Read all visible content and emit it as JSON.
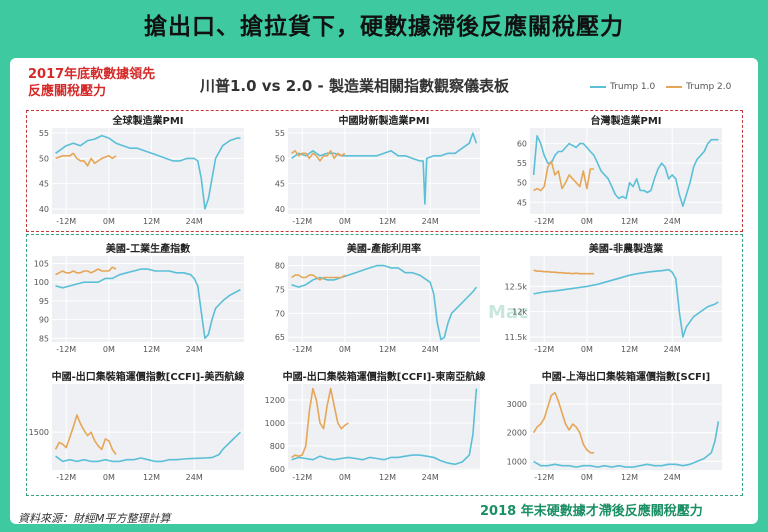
{
  "headline": "搶出口、搶拉貨下，硬數據滯後反應關稅壓力",
  "note_top_left_1": "2017年底軟數據領先",
  "note_top_left_2": "反應關稅壓力",
  "note_bottom_right": "2018 年末硬數據才滯後反應關稅壓力",
  "source": "資料來源：財經M平方整理計算",
  "chart_title": "川普1.0 vs 2.0 - 製造業相關指數觀察儀表板",
  "watermark": "MacroMicro",
  "legend": [
    {
      "name": "Trump 1.0",
      "color": "#5bbfd8"
    },
    {
      "name": "Trump 2.0",
      "color": "#e6a657"
    }
  ],
  "x_ticks": [
    "-12M",
    "0M",
    "12M",
    "24M"
  ],
  "chart_data": [
    {
      "type": "line",
      "title": "全球製造業PMI",
      "ylim": [
        39,
        56
      ],
      "yticks": [
        40,
        45,
        50,
        55
      ],
      "ytick_labels": [
        "40",
        "45",
        "50",
        "55"
      ],
      "series": [
        {
          "name": "Trump 1.0",
          "x": [
            -15,
            -12,
            -10,
            -8,
            -6,
            -4,
            -2,
            0,
            2,
            4,
            6,
            8,
            10,
            12,
            14,
            16,
            18,
            20,
            22,
            24,
            25,
            26,
            27,
            28,
            30,
            32,
            34,
            36,
            37
          ],
          "y": [
            51,
            52.5,
            53,
            52.5,
            53.5,
            53.8,
            54.5,
            54,
            53,
            52.5,
            52,
            52,
            51.5,
            51,
            50.5,
            50,
            49.5,
            49.5,
            50,
            50,
            49.5,
            46,
            40,
            42,
            50,
            52.5,
            53.5,
            54,
            54
          ]
        },
        {
          "name": "Trump 2.0",
          "x": [
            -15,
            -13,
            -11,
            -10,
            -9,
            -8,
            -7,
            -6,
            -5,
            -4,
            -2,
            0,
            1,
            2
          ],
          "y": [
            50,
            50.5,
            50.5,
            51,
            50,
            49.5,
            49.5,
            48.5,
            50,
            49,
            50,
            50.5,
            50,
            50.5
          ]
        }
      ]
    },
    {
      "type": "line",
      "title": "中國財新製造業PMI",
      "ylim": [
        39,
        56
      ],
      "yticks": [
        40,
        45,
        50,
        55
      ],
      "ytick_labels": [
        "40",
        "45",
        "50",
        "55"
      ],
      "series": [
        {
          "name": "Trump 1.0",
          "x": [
            -15,
            -13,
            -11,
            -9,
            -7,
            -5,
            -3,
            -1,
            1,
            3,
            5,
            7,
            9,
            11,
            13,
            15,
            17,
            19,
            21,
            22,
            22.5,
            23,
            25,
            27,
            29,
            31,
            33,
            35,
            36,
            37
          ],
          "y": [
            50,
            51,
            50.5,
            51.5,
            50.5,
            51,
            51,
            50.5,
            50.5,
            50.5,
            50.5,
            50.5,
            50.5,
            51,
            51.5,
            50.5,
            50.5,
            50,
            49.5,
            49.5,
            41,
            50,
            50.5,
            50.5,
            51,
            51,
            52,
            53,
            55,
            53
          ]
        },
        {
          "name": "Trump 2.0",
          "x": [
            -15,
            -14,
            -13,
            -12,
            -11,
            -10,
            -9,
            -8,
            -7,
            -6,
            -5,
            -4,
            -3,
            -2,
            -1,
            0
          ],
          "y": [
            51,
            51.5,
            50.5,
            51,
            51,
            50,
            51,
            50.5,
            49.5,
            50.5,
            50.5,
            51.5,
            50,
            51,
            50.5,
            51
          ]
        }
      ]
    },
    {
      "type": "line",
      "title": "台灣製造業PMI",
      "ylim": [
        42,
        64
      ],
      "yticks": [
        45,
        50,
        55,
        60
      ],
      "ytick_labels": [
        "45",
        "50",
        "55",
        "60"
      ],
      "series": [
        {
          "name": "Trump 1.0",
          "x": [
            -15,
            -14,
            -13,
            -12,
            -11,
            -10,
            -9,
            -8,
            -7,
            -6,
            -5,
            -4,
            -3,
            -2,
            -1,
            0,
            1,
            2,
            3,
            4,
            5,
            6,
            7,
            8,
            9,
            10,
            11,
            12,
            13,
            14,
            15,
            16,
            17,
            18,
            19,
            20,
            21,
            22,
            23,
            24,
            25,
            26,
            27,
            28,
            29,
            30,
            31,
            32,
            33,
            34,
            35,
            36,
            37
          ],
          "y": [
            52,
            62,
            60,
            57,
            55,
            55,
            57,
            58,
            58,
            59,
            60,
            59.5,
            59,
            60,
            60,
            59,
            58,
            57,
            55,
            53,
            52,
            51,
            49,
            47,
            46,
            46.5,
            46,
            50,
            49,
            51,
            48,
            48,
            47.5,
            48,
            51,
            53.5,
            55,
            54,
            51,
            52,
            51,
            47,
            44,
            47,
            50,
            54,
            56,
            57,
            58,
            60,
            61,
            61,
            61
          ]
        },
        {
          "name": "Trump 2.0",
          "x": [
            -15,
            -14,
            -13,
            -12,
            -11,
            -10,
            -9,
            -8,
            -7,
            -6,
            -5,
            -4,
            -3,
            -2,
            -1,
            0,
            1,
            2
          ],
          "y": [
            48,
            48.5,
            48,
            49,
            54,
            55.5,
            52,
            53,
            48.5,
            50,
            52,
            51,
            50,
            49,
            53,
            48.5,
            53.5,
            53.5
          ]
        }
      ]
    },
    {
      "type": "line",
      "title": "美國-工業生產指數",
      "ylim": [
        84,
        107
      ],
      "yticks": [
        85,
        90,
        95,
        100,
        105
      ],
      "ytick_labels": [
        "85",
        "90",
        "95",
        "100",
        "105"
      ],
      "series": [
        {
          "name": "Trump 1.0",
          "x": [
            -15,
            -13,
            -11,
            -9,
            -7,
            -5,
            -3,
            -1,
            1,
            3,
            5,
            7,
            9,
            11,
            13,
            15,
            17,
            19,
            21,
            23,
            24,
            25,
            26,
            27,
            28,
            29,
            30,
            32,
            34,
            36,
            37
          ],
          "y": [
            99,
            98.5,
            99,
            99.5,
            100,
            100,
            100,
            101,
            101,
            102,
            102.5,
            103,
            103.5,
            103.5,
            103,
            103,
            103,
            102.5,
            102.5,
            102,
            101,
            99,
            92,
            85,
            86,
            90,
            93,
            95,
            96.5,
            97.5,
            98
          ]
        },
        {
          "name": "Trump 2.0",
          "x": [
            -15,
            -14,
            -13,
            -12,
            -11,
            -10,
            -9,
            -8,
            -7,
            -6,
            -5,
            -4,
            -3,
            -2,
            -1,
            0,
            1,
            2
          ],
          "y": [
            102,
            102.5,
            103,
            102.5,
            102.5,
            103,
            102.5,
            102.5,
            103,
            103,
            102.5,
            103,
            103.5,
            103,
            103,
            103,
            104,
            103.5
          ]
        }
      ]
    },
    {
      "type": "line",
      "title": "美國-產能利用率",
      "ylim": [
        64,
        82
      ],
      "yticks": [
        65,
        70,
        75,
        80
      ],
      "ytick_labels": [
        "65",
        "70",
        "75",
        "80"
      ],
      "series": [
        {
          "name": "Trump 1.0",
          "x": [
            -15,
            -13,
            -11,
            -9,
            -7,
            -5,
            -3,
            -1,
            1,
            3,
            5,
            7,
            9,
            11,
            13,
            15,
            17,
            19,
            21,
            23,
            24,
            25,
            26,
            27,
            28,
            29,
            30,
            32,
            34,
            36,
            37
          ],
          "y": [
            76,
            75.5,
            76,
            77,
            77.5,
            77,
            77,
            77.5,
            78,
            78.5,
            79,
            79.5,
            80,
            80,
            79.5,
            79.5,
            78.5,
            78.5,
            78,
            77,
            76.5,
            74,
            68,
            64.5,
            65,
            68,
            70,
            71.5,
            73,
            74.5,
            75.5
          ]
        },
        {
          "name": "Trump 2.0",
          "x": [
            -15,
            -14,
            -13,
            -12,
            -11,
            -10,
            -9,
            -8,
            -7,
            -6,
            -5,
            -4,
            -3,
            -2,
            -1,
            0
          ],
          "y": [
            77.5,
            78,
            78,
            77.5,
            77.5,
            78,
            78,
            77.5,
            77,
            77.5,
            77.5,
            77.5,
            77.5,
            77.5,
            77.5,
            78
          ]
        }
      ]
    },
    {
      "type": "line",
      "title": "美國-非農製造業",
      "ylim": [
        11400,
        13100
      ],
      "yticks": [
        11500,
        12000,
        12500
      ],
      "ytick_labels": [
        "11.5k",
        "12k",
        "12.5k"
      ],
      "series": [
        {
          "name": "Trump 1.0",
          "x": [
            -15,
            -12,
            -9,
            -6,
            -3,
            0,
            3,
            6,
            9,
            12,
            15,
            18,
            21,
            23,
            24,
            25,
            26,
            27,
            28,
            30,
            32,
            34,
            36,
            37
          ],
          "y": [
            12350,
            12390,
            12410,
            12440,
            12470,
            12500,
            12540,
            12600,
            12660,
            12720,
            12760,
            12790,
            12810,
            12830,
            12780,
            12650,
            12000,
            11500,
            11700,
            11900,
            12000,
            12100,
            12150,
            12190
          ]
        },
        {
          "name": "Trump 2.0",
          "x": [
            -15,
            -14,
            -13,
            -12,
            -11,
            -10,
            -9,
            -8,
            -7,
            -6,
            -5,
            -4,
            -3,
            -2,
            -1,
            0,
            1,
            2
          ],
          "y": [
            12820,
            12800,
            12800,
            12790,
            12790,
            12780,
            12780,
            12770,
            12770,
            12760,
            12760,
            12750,
            12760,
            12750,
            12750,
            12750,
            12750,
            12750
          ]
        }
      ]
    },
    {
      "type": "line",
      "title": "中國-出口集裝箱運價指數[CCFI]-美西航線",
      "ylim": [
        400,
        2900
      ],
      "yticks": [
        1500
      ],
      "ytick_labels": [
        "1500"
      ],
      "series": [
        {
          "name": "Trump 1.0",
          "x": [
            -15,
            -13,
            -11,
            -9,
            -7,
            -5,
            -3,
            -1,
            1,
            3,
            5,
            7,
            9,
            11,
            13,
            15,
            17,
            19,
            21,
            23,
            25,
            27,
            29,
            31,
            32,
            33,
            34,
            35,
            36,
            37
          ],
          "y": [
            800,
            650,
            700,
            650,
            700,
            650,
            650,
            700,
            650,
            650,
            700,
            700,
            750,
            700,
            650,
            650,
            700,
            700,
            720,
            730,
            740,
            750,
            760,
            850,
            1000,
            1100,
            1200,
            1300,
            1400,
            1500
          ]
        },
        {
          "name": "Trump 2.0",
          "x": [
            -15,
            -14,
            -13,
            -12,
            -11,
            -10,
            -9,
            -8,
            -7,
            -6,
            -5,
            -4,
            -3,
            -2,
            -1,
            0,
            1,
            2
          ],
          "y": [
            1000,
            1200,
            1150,
            1050,
            1350,
            1650,
            2000,
            1750,
            1550,
            1400,
            1500,
            1250,
            1100,
            1000,
            1300,
            1250,
            1000,
            850
          ]
        }
      ]
    },
    {
      "type": "line",
      "title": "中國-出口集裝箱運價指數[CCFI]-東南亞航線",
      "ylim": [
        590,
        1340
      ],
      "yticks": [
        600,
        800,
        1000,
        1200
      ],
      "ytick_labels": [
        "600",
        "800",
        "1000",
        "1200"
      ],
      "series": [
        {
          "name": "Trump 1.0",
          "x": [
            -15,
            -13,
            -11,
            -9,
            -7,
            -5,
            -3,
            -1,
            1,
            3,
            5,
            7,
            9,
            11,
            13,
            15,
            17,
            19,
            21,
            23,
            25,
            27,
            29,
            31,
            33,
            35,
            36,
            37
          ],
          "y": [
            680,
            700,
            690,
            680,
            710,
            690,
            680,
            690,
            700,
            690,
            680,
            700,
            690,
            680,
            700,
            700,
            710,
            720,
            720,
            710,
            700,
            670,
            650,
            640,
            660,
            720,
            900,
            1300
          ]
        },
        {
          "name": "Trump 2.0",
          "x": [
            -15,
            -14,
            -13,
            -12,
            -11,
            -10,
            -9,
            -8,
            -7,
            -6,
            -5,
            -4,
            -3,
            -2,
            -1,
            0,
            1
          ],
          "y": [
            700,
            720,
            710,
            720,
            800,
            1100,
            1300,
            1200,
            1000,
            950,
            1150,
            1300,
            1150,
            1000,
            950,
            980,
            1000
          ]
        }
      ]
    },
    {
      "type": "line",
      "title": "中國-上海出口集裝箱運價指數[SCFI]",
      "ylim": [
        700,
        3700
      ],
      "yticks": [
        1000,
        2000,
        3000
      ],
      "ytick_labels": [
        "1000",
        "2000",
        "3000"
      ],
      "series": [
        {
          "name": "Trump 1.0",
          "x": [
            -15,
            -13,
            -11,
            -9,
            -7,
            -5,
            -3,
            -1,
            1,
            3,
            5,
            7,
            9,
            11,
            13,
            15,
            17,
            19,
            21,
            23,
            25,
            27,
            29,
            31,
            33,
            35,
            36,
            37
          ],
          "y": [
            1000,
            850,
            850,
            900,
            850,
            850,
            800,
            850,
            850,
            800,
            850,
            800,
            850,
            800,
            800,
            850,
            900,
            850,
            850,
            900,
            900,
            850,
            900,
            1000,
            1100,
            1300,
            1700,
            2400
          ]
        },
        {
          "name": "Trump 2.0",
          "x": [
            -15,
            -14,
            -13,
            -12,
            -11,
            -10,
            -9,
            -8,
            -7,
            -6,
            -5,
            -4,
            -3,
            -2,
            -1,
            0,
            1,
            2
          ],
          "y": [
            2000,
            2200,
            2300,
            2500,
            2900,
            3300,
            3400,
            3100,
            2700,
            2300,
            2100,
            2300,
            2200,
            2000,
            1600,
            1400,
            1300,
            1300
          ]
        }
      ]
    }
  ]
}
